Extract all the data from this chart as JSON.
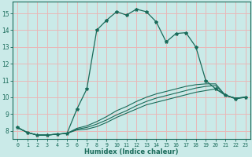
{
  "xlabel": "Humidex (Indice chaleur)",
  "background_color": "#caeae8",
  "grid_color": "#e8b8b8",
  "line_color": "#1a6b5a",
  "xlim": [
    -0.5,
    23.5
  ],
  "ylim": [
    7.5,
    15.7
  ],
  "xticks": [
    0,
    1,
    2,
    3,
    4,
    5,
    6,
    7,
    8,
    9,
    10,
    11,
    12,
    13,
    14,
    15,
    16,
    17,
    18,
    19,
    20,
    21,
    22,
    23
  ],
  "yticks": [
    8,
    9,
    10,
    11,
    12,
    13,
    14,
    15
  ],
  "series0": [
    8.2,
    7.9,
    7.75,
    7.75,
    7.8,
    7.85,
    9.3,
    10.5,
    14.0,
    14.6,
    15.1,
    14.9,
    15.25,
    15.1,
    14.5,
    13.3,
    13.8,
    13.85,
    13.0,
    11.0,
    10.5,
    10.15,
    9.9,
    10.0
  ],
  "series1": [
    8.2,
    7.9,
    7.75,
    7.75,
    7.8,
    7.85,
    8.05,
    8.1,
    8.25,
    8.5,
    8.8,
    9.05,
    9.3,
    9.55,
    9.7,
    9.85,
    10.0,
    10.15,
    10.3,
    10.4,
    10.5,
    10.1,
    9.95,
    10.0
  ],
  "series2": [
    8.2,
    7.9,
    7.75,
    7.75,
    7.8,
    7.85,
    8.1,
    8.2,
    8.4,
    8.65,
    8.95,
    9.2,
    9.5,
    9.75,
    9.95,
    10.1,
    10.25,
    10.4,
    10.55,
    10.65,
    10.7,
    10.1,
    9.95,
    10.0
  ],
  "series3": [
    8.2,
    7.9,
    7.75,
    7.75,
    7.8,
    7.85,
    8.15,
    8.3,
    8.55,
    8.85,
    9.2,
    9.45,
    9.75,
    10.0,
    10.2,
    10.35,
    10.5,
    10.65,
    10.75,
    10.8,
    10.8,
    10.1,
    9.95,
    10.0
  ]
}
